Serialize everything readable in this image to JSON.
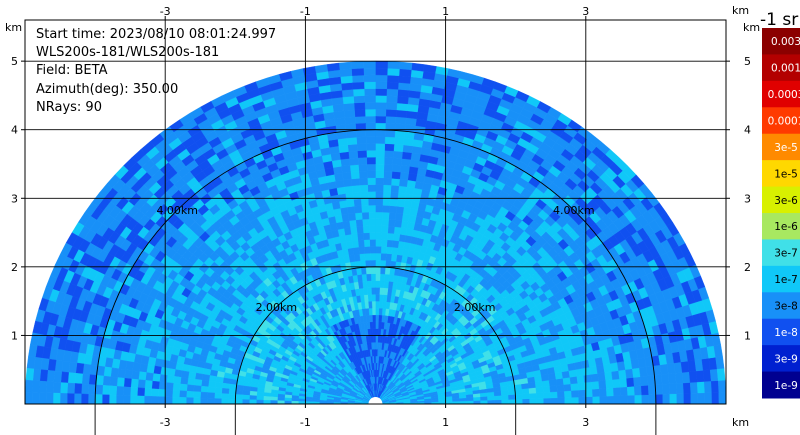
{
  "info": {
    "start_time": "Start time: 2023/08/10 08:01:24.997",
    "instrument": "WLS200s-181/WLS200s-181",
    "field": "Field: BETA",
    "azimuth": "Azimuth(deg): 350.00",
    "nrays": "NRays: 90"
  },
  "colorbar": {
    "title": "-1 sr",
    "labels": [
      "0.003",
      "0.001",
      "0.0003",
      "0.0001",
      "3e-5",
      "1e-5",
      "3e-6",
      "1e-6",
      "3e-7",
      "1e-7",
      "3e-8",
      "1e-8",
      "3e-9",
      "1e-9"
    ],
    "colors": [
      "#8b0000",
      "#b30000",
      "#e00000",
      "#ff3a00",
      "#ff8a00",
      "#ffd800",
      "#d8f000",
      "#a8e860",
      "#40e0e8",
      "#10c8f8",
      "#1890f8",
      "#1050f0",
      "#0020d0",
      "#000090"
    ]
  },
  "chart_data": {
    "type": "heatmap",
    "projection": "polar-sector RHI",
    "x_range_km": [
      -5,
      5
    ],
    "y_range_km": [
      0,
      5.6
    ],
    "x_ticks": [
      -3,
      -1,
      1,
      3
    ],
    "y_ticks": [
      1,
      2,
      3,
      4,
      5
    ],
    "x_unit": "km",
    "y_unit": "km",
    "max_range_km": 5,
    "range_rings_km": [
      2,
      4
    ],
    "ring_labels": [
      "2.00km",
      "4.00km"
    ],
    "grid": true,
    "field": "BETA",
    "dominant_log10_by_range": [
      {
        "r_km": 0.5,
        "log10": -7.3
      },
      {
        "r_km": 1.5,
        "log10": -7.0
      },
      {
        "r_km": 2.5,
        "log10": -7.2
      },
      {
        "r_km": 3.5,
        "log10": -7.4
      },
      {
        "r_km": 4.5,
        "log10": -7.6
      }
    ]
  }
}
